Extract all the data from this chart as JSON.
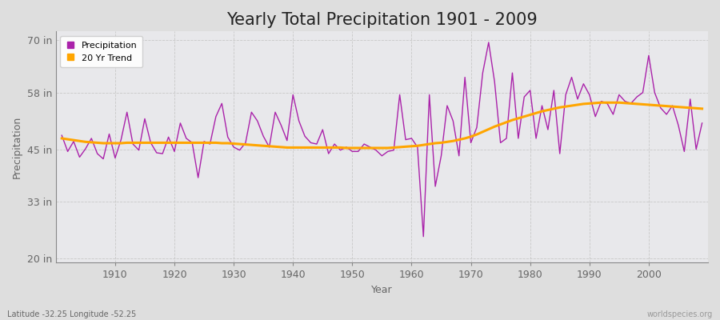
{
  "title": "Yearly Total Precipitation 1901 - 2009",
  "xlabel": "Year",
  "ylabel": "Precipitation",
  "lat_lon_label": "Latitude -32.25 Longitude -52.25",
  "worldspecies_label": "worldspecies.org",
  "years": [
    1901,
    1902,
    1903,
    1904,
    1905,
    1906,
    1907,
    1908,
    1909,
    1910,
    1911,
    1912,
    1913,
    1914,
    1915,
    1916,
    1917,
    1918,
    1919,
    1920,
    1921,
    1922,
    1923,
    1924,
    1925,
    1926,
    1927,
    1928,
    1929,
    1930,
    1931,
    1932,
    1933,
    1934,
    1935,
    1936,
    1937,
    1938,
    1939,
    1940,
    1941,
    1942,
    1943,
    1944,
    1945,
    1946,
    1947,
    1948,
    1949,
    1950,
    1951,
    1952,
    1953,
    1954,
    1955,
    1956,
    1957,
    1958,
    1959,
    1960,
    1961,
    1962,
    1963,
    1964,
    1965,
    1966,
    1967,
    1968,
    1969,
    1970,
    1971,
    1972,
    1973,
    1974,
    1975,
    1976,
    1977,
    1978,
    1979,
    1980,
    1981,
    1982,
    1983,
    1984,
    1985,
    1986,
    1987,
    1988,
    1989,
    1990,
    1991,
    1992,
    1993,
    1994,
    1995,
    1996,
    1997,
    1998,
    1999,
    2000,
    2001,
    2002,
    2003,
    2004,
    2005,
    2006,
    2007,
    2008,
    2009
  ],
  "precip_in": [
    48.2,
    44.5,
    46.8,
    43.2,
    45.1,
    47.5,
    44.0,
    42.8,
    48.5,
    43.0,
    47.2,
    53.5,
    46.2,
    44.8,
    52.0,
    46.5,
    44.2,
    44.0,
    47.8,
    44.5,
    51.0,
    47.5,
    46.5,
    38.5,
    46.8,
    46.2,
    52.5,
    55.5,
    47.8,
    45.5,
    44.8,
    46.5,
    53.5,
    51.5,
    48.0,
    45.5,
    53.5,
    50.5,
    47.0,
    57.5,
    51.5,
    48.0,
    46.5,
    46.2,
    49.5,
    44.0,
    46.2,
    44.8,
    45.5,
    44.5,
    44.5,
    46.2,
    45.5,
    44.8,
    43.5,
    44.5,
    44.8,
    57.5,
    47.2,
    47.5,
    45.5,
    25.0,
    57.5,
    36.5,
    43.5,
    55.0,
    51.5,
    43.5,
    61.5,
    46.5,
    50.0,
    62.5,
    69.5,
    60.5,
    46.5,
    47.5,
    62.5,
    47.5,
    57.0,
    58.5,
    47.5,
    55.0,
    49.5,
    58.5,
    44.0,
    57.5,
    61.5,
    56.5,
    60.0,
    57.5,
    52.5,
    56.0,
    55.5,
    53.0,
    57.5,
    56.0,
    55.5,
    57.0,
    58.0,
    66.5,
    58.0,
    54.5,
    53.0,
    55.0,
    50.5,
    44.5,
    56.5,
    45.0,
    51.0
  ],
  "trend_in": [
    47.5,
    47.3,
    47.1,
    46.9,
    46.7,
    46.6,
    46.5,
    46.4,
    46.4,
    46.4,
    46.4,
    46.5,
    46.5,
    46.5,
    46.5,
    46.5,
    46.5,
    46.5,
    46.5,
    46.5,
    46.5,
    46.5,
    46.5,
    46.5,
    46.5,
    46.5,
    46.5,
    46.4,
    46.4,
    46.3,
    46.2,
    46.1,
    46.0,
    45.9,
    45.8,
    45.7,
    45.6,
    45.5,
    45.4,
    45.4,
    45.4,
    45.4,
    45.4,
    45.4,
    45.4,
    45.4,
    45.4,
    45.4,
    45.3,
    45.3,
    45.3,
    45.3,
    45.3,
    45.3,
    45.3,
    45.3,
    45.4,
    45.5,
    45.6,
    45.7,
    45.8,
    46.0,
    46.2,
    46.4,
    46.5,
    46.7,
    46.9,
    47.2,
    47.5,
    47.9,
    48.4,
    49.0,
    49.6,
    50.2,
    50.7,
    51.2,
    51.7,
    52.1,
    52.5,
    52.9,
    53.3,
    53.7,
    54.0,
    54.3,
    54.6,
    54.8,
    55.0,
    55.2,
    55.4,
    55.5,
    55.6,
    55.7,
    55.7,
    55.7,
    55.7,
    55.6,
    55.5,
    55.4,
    55.3,
    55.2,
    55.1,
    55.0,
    54.9,
    54.8,
    54.7,
    54.6,
    54.5,
    54.4,
    54.3
  ],
  "yticks": [
    20,
    33,
    45,
    58,
    70
  ],
  "ytick_labels": [
    "20 in",
    "33 in",
    "45 in",
    "58 in",
    "70 in"
  ],
  "ylim": [
    19,
    72
  ],
  "xlim": [
    1900,
    2010
  ],
  "xticks": [
    1910,
    1920,
    1930,
    1940,
    1950,
    1960,
    1970,
    1980,
    1990,
    2000
  ],
  "precip_color": "#AA22AA",
  "trend_color": "#FFA500",
  "bg_plot": "#E8E8EB",
  "bg_fig": "#DEDEDE",
  "grid_color": "#C8C8C8",
  "spine_color": "#888888",
  "title_fontsize": 15,
  "axis_label_fontsize": 9,
  "tick_fontsize": 9,
  "tick_color": "#666666"
}
